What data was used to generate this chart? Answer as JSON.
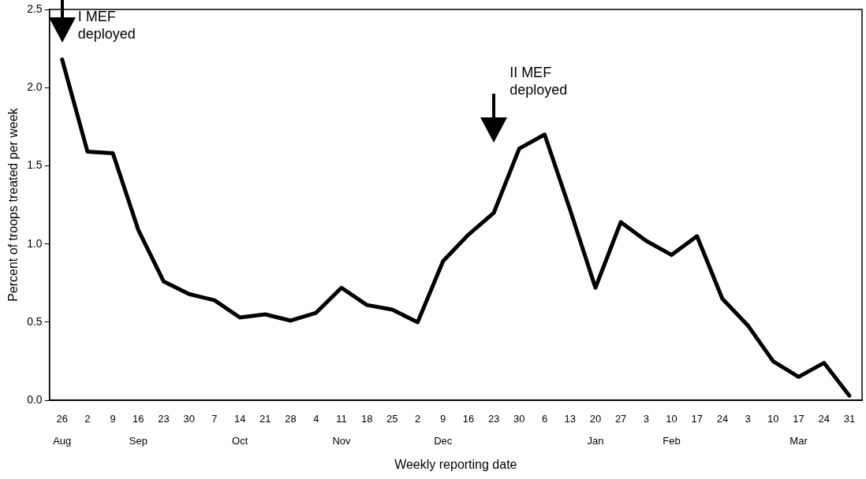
{
  "chart_data": {
    "type": "line",
    "xlabel": "Weekly reporting date",
    "ylabel": "Percent of troops treated per week",
    "categories": [
      "26\nAug",
      "2",
      "9",
      "16\nSep",
      "23",
      "30",
      "7",
      "14\nOct",
      "21",
      "28",
      "4",
      "11\nNov",
      "18",
      "25",
      "2",
      "9\nDec",
      "16",
      "23",
      "30",
      "6",
      "13",
      "20\nJan",
      "27",
      "3",
      "10\nFeb",
      "17",
      "24",
      "3",
      "10",
      "17\nMar",
      "24",
      "31"
    ],
    "series": [
      {
        "color": "#000000",
        "values": [
          2.18,
          1.59,
          1.58,
          1.09,
          0.76,
          0.68,
          0.64,
          0.53,
          0.55,
          0.51,
          0.56,
          0.72,
          0.61,
          0.58,
          0.5,
          0.89,
          1.06,
          1.2,
          1.61,
          1.7,
          1.22,
          0.72,
          1.14,
          1.02,
          0.93,
          1.05,
          0.65,
          0.48,
          0.25,
          0.15,
          0.24,
          0.03
        ]
      }
    ],
    "ylim": [
      0,
      2.5
    ],
    "yticks": [
      {
        "value": 0,
        "label": "0.0"
      },
      {
        "value": 0.5,
        "label": "0.5"
      },
      {
        "value": 1,
        "label": "1.0"
      },
      {
        "value": 1.5,
        "label": "1.5"
      },
      {
        "value": 2,
        "label": "2.0"
      },
      {
        "value": 2.5,
        "label": "2.5"
      }
    ],
    "annotations": [
      "I MEF\ndeployed",
      "II MEF\ndeployed"
    ],
    "grid": false,
    "legend": false,
    "marker": "none",
    "line_style": "solid"
  }
}
